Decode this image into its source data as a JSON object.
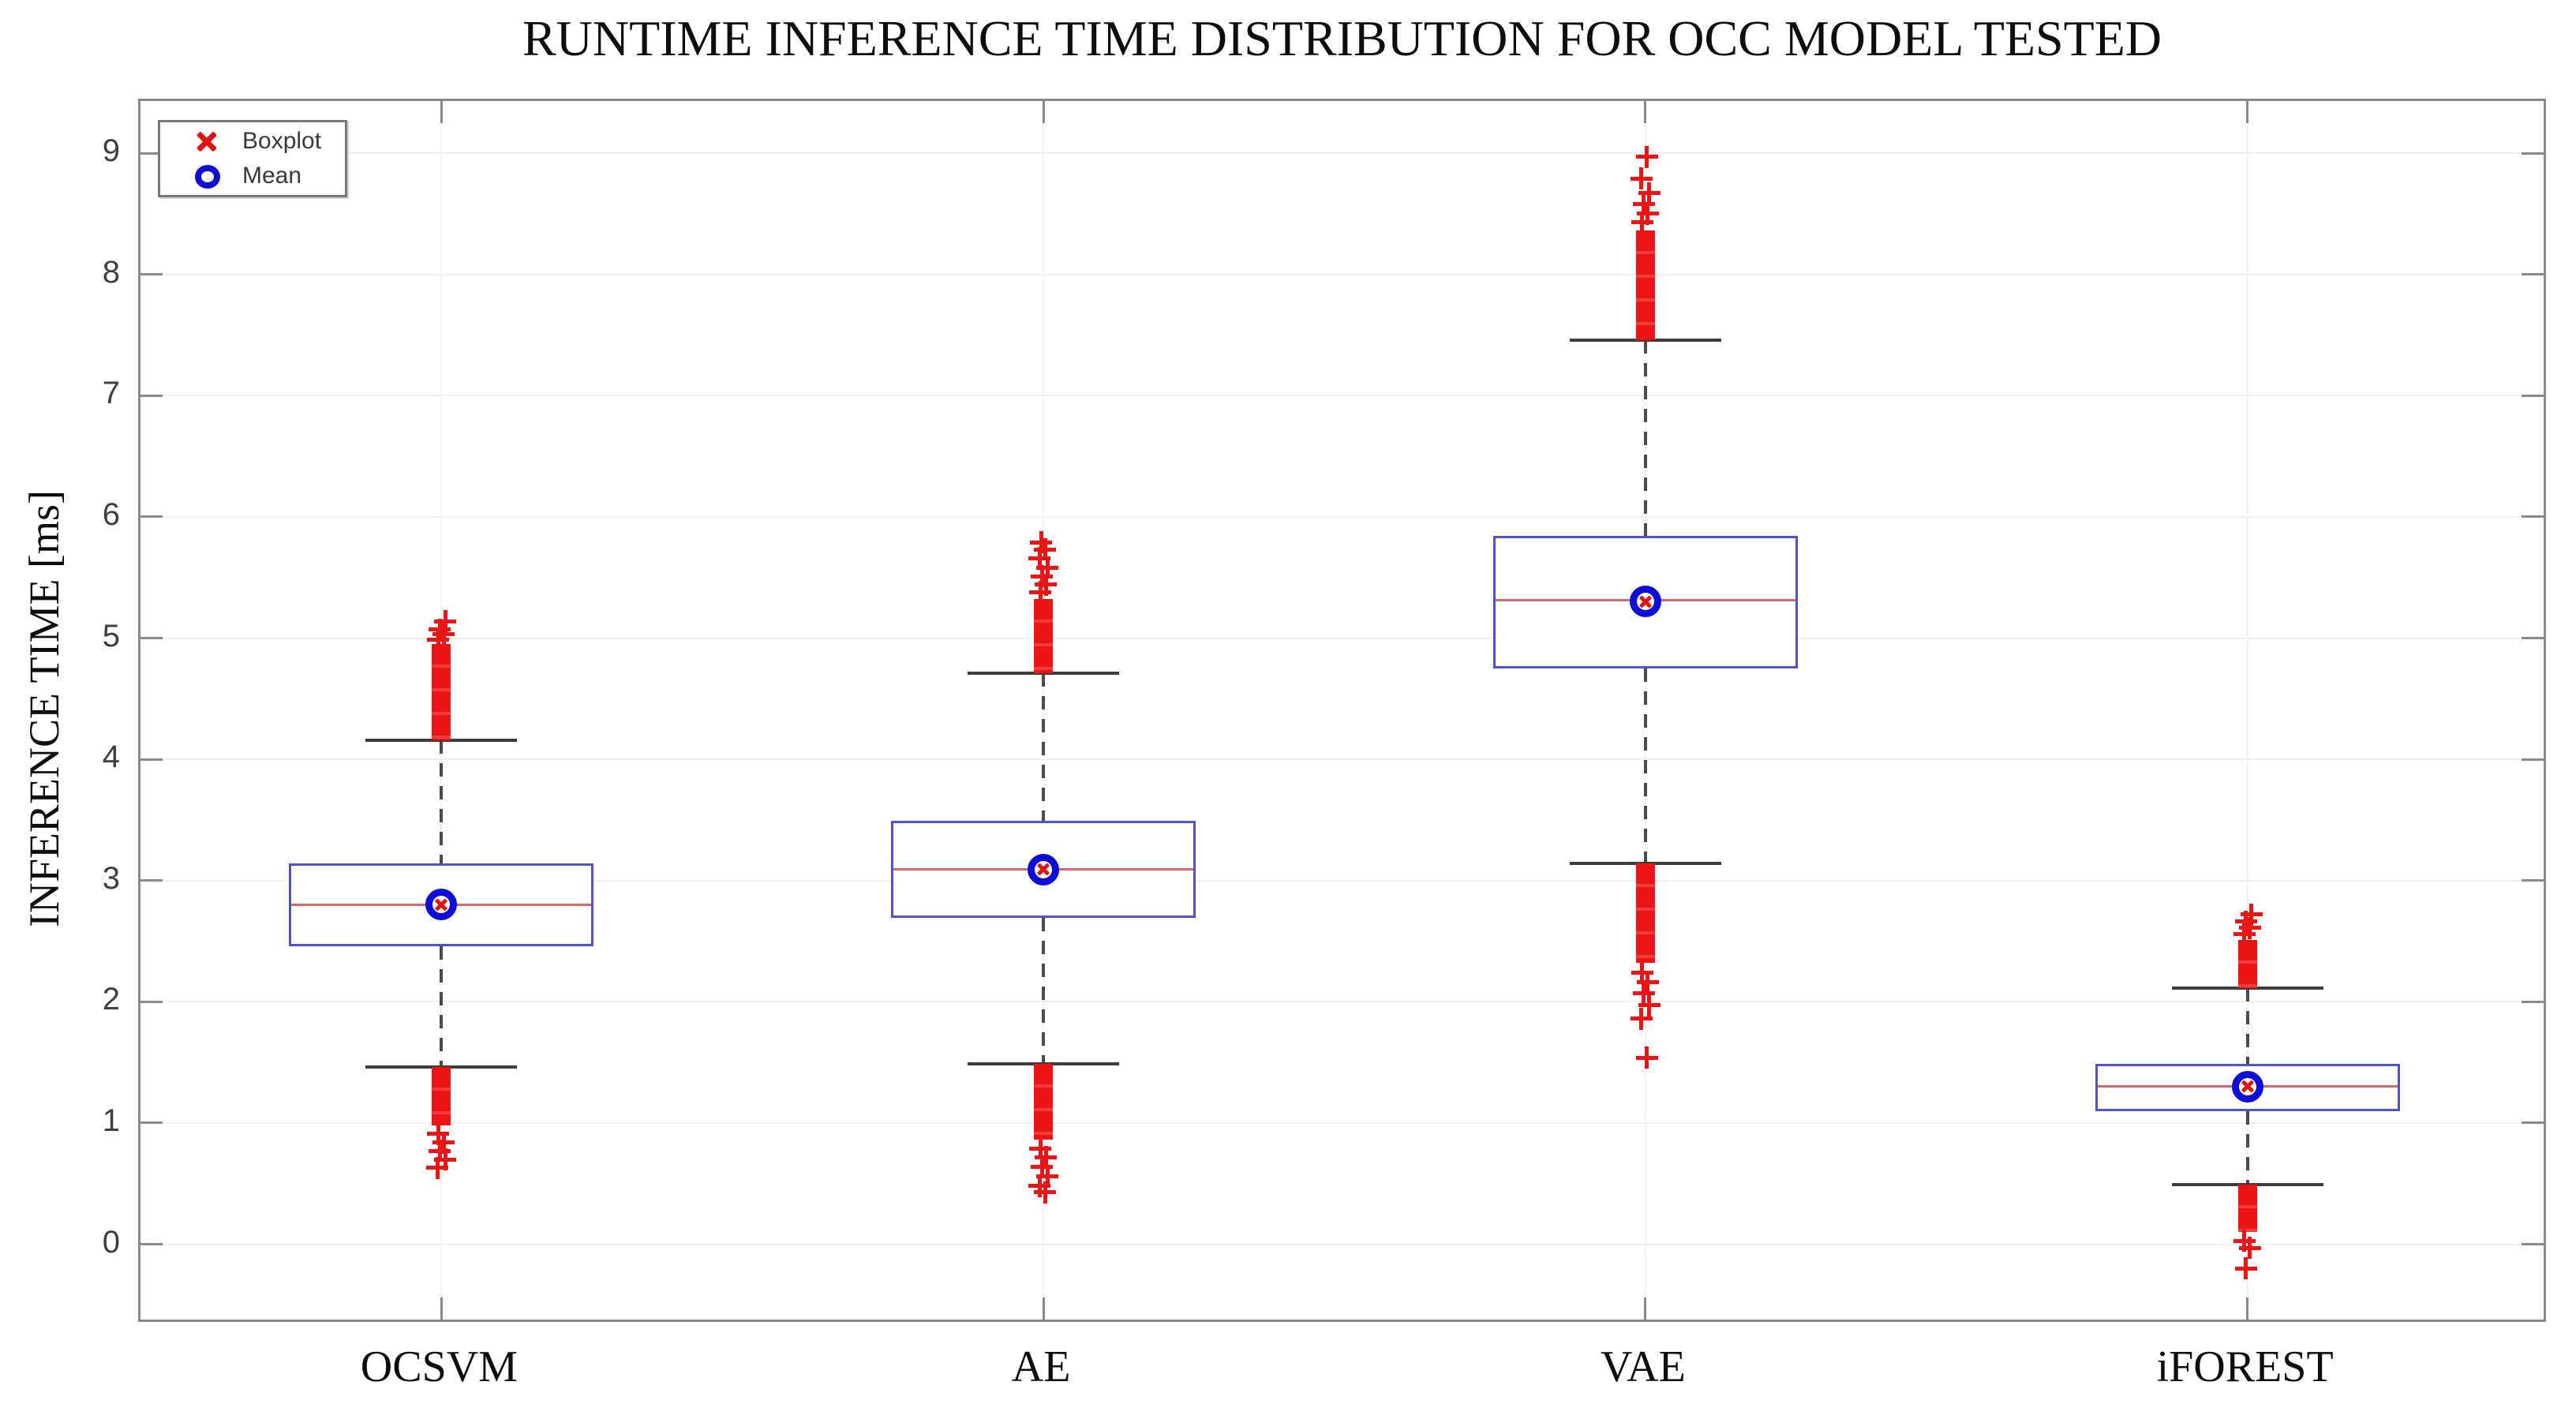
{
  "title": "RUNTIME INFERENCE TIME DISTRIBUTION FOR OCC MODEL TESTED",
  "ylabel": "INFERENCE TIME [ms]",
  "legend": {
    "position": "top-left",
    "items": [
      {
        "label": "Boxplot",
        "marker": "x-marker",
        "color": "#e01212"
      },
      {
        "label": "Mean",
        "marker": "circle-marker",
        "color": "#0d0dd6"
      }
    ]
  },
  "colors": {
    "box_edge": "#5252c8",
    "median": "#cf6a6a",
    "outlier": "#ec1414",
    "mean_ring": "#0d0dd6",
    "whisker": "#4b4b4b",
    "axis": "#8a8a8a",
    "grid": "#efefef"
  },
  "chart_data": {
    "type": "boxplot",
    "title": "RUNTIME INFERENCE TIME DISTRIBUTION FOR OCC MODEL TESTED",
    "xlabel": "",
    "ylabel": "INFERENCE TIME [ms]",
    "ylim": [
      -0.66,
      9.43
    ],
    "yticks": [
      0,
      1,
      2,
      3,
      4,
      5,
      6,
      7,
      8,
      9
    ],
    "grid": "on",
    "legend_position": "top-left",
    "categories": [
      "OCSVM",
      "AE",
      "VAE",
      "iFOREST"
    ],
    "series": [
      {
        "name": "OCSVM",
        "q1": 2.46,
        "median": 2.8,
        "q3": 3.14,
        "mean": 2.8,
        "whisker_low": 1.46,
        "whisker_high": 4.16,
        "outliers_high_dense": [
          4.16,
          4.95
        ],
        "outliers_high": [
          4.99,
          5.03,
          5.07,
          5.14
        ],
        "outliers_low_dense": [
          0.98,
          1.46
        ],
        "outliers_low": [
          0.91,
          0.84,
          0.77,
          0.7,
          0.63
        ]
      },
      {
        "name": "AE",
        "q1": 2.69,
        "median": 3.09,
        "q3": 3.49,
        "mean": 3.09,
        "whisker_low": 1.49,
        "whisker_high": 4.71,
        "outliers_high_dense": [
          4.71,
          5.32
        ],
        "outliers_high": [
          5.38,
          5.44,
          5.51,
          5.58,
          5.66,
          5.73,
          5.79
        ],
        "outliers_low_dense": [
          0.86,
          1.49
        ],
        "outliers_low": [
          0.79,
          0.72,
          0.64,
          0.56,
          0.48,
          0.43
        ]
      },
      {
        "name": "VAE",
        "q1": 4.75,
        "median": 5.31,
        "q3": 5.84,
        "mean": 5.3,
        "whisker_low": 3.14,
        "whisker_high": 7.46,
        "outliers_high_dense": [
          7.46,
          8.36
        ],
        "outliers_high": [
          8.43,
          8.5,
          8.58,
          8.67,
          8.79,
          8.97
        ],
        "outliers_low_dense": [
          2.32,
          3.14
        ],
        "outliers_low": [
          2.24,
          2.16,
          2.07,
          1.97,
          1.86,
          1.54
        ]
      },
      {
        "name": "iFOREST",
        "q1": 1.1,
        "median": 1.3,
        "q3": 1.49,
        "mean": 1.3,
        "whisker_low": 0.49,
        "whisker_high": 2.11,
        "outliers_high_dense": [
          2.11,
          2.51
        ],
        "outliers_high": [
          2.56,
          2.61,
          2.66,
          2.72
        ],
        "outliers_low_dense": [
          0.1,
          0.49
        ],
        "outliers_low": [
          0.03,
          -0.03,
          -0.2
        ]
      }
    ]
  }
}
